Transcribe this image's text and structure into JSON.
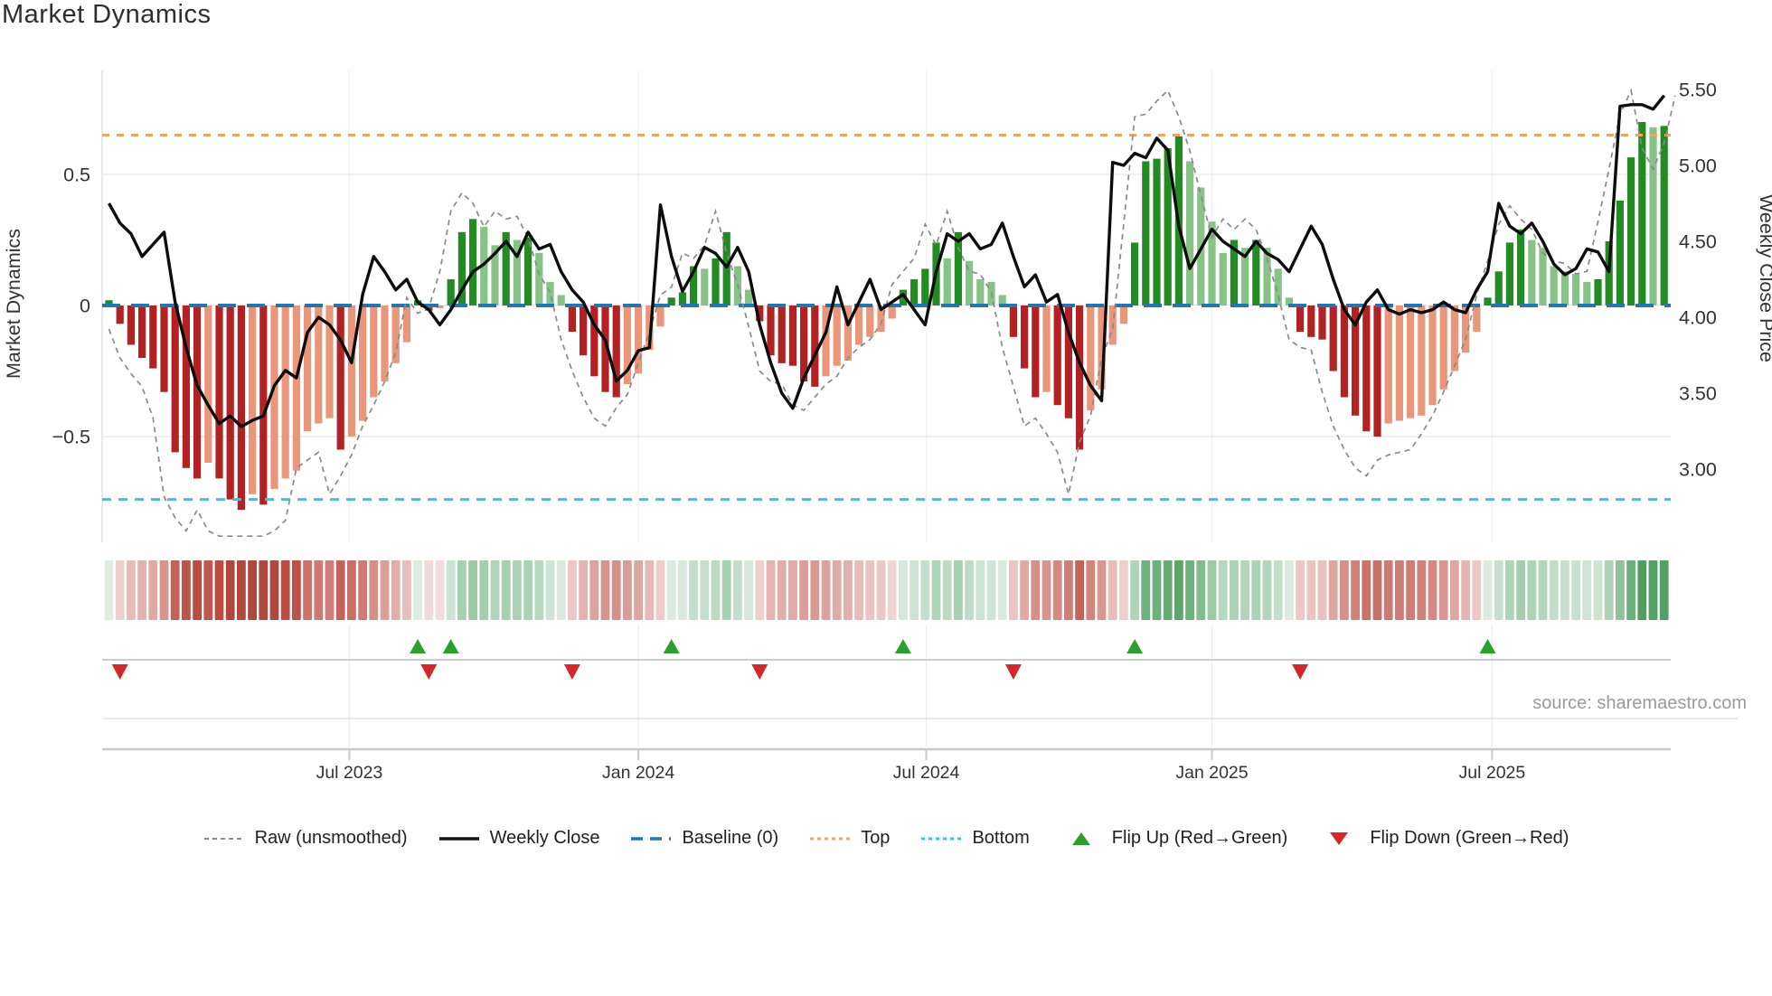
{
  "title": "Market Dynamics",
  "source_credit": "source: sharemaestro.com",
  "axes": {
    "left": {
      "label": "Market Dynamics",
      "ticks": [
        {
          "value": 0.5,
          "label": "0.5"
        },
        {
          "value": 0.0,
          "label": "0"
        },
        {
          "value": -0.5,
          "label": "−0.5"
        }
      ]
    },
    "right": {
      "label": "Weekly Close Price",
      "ticks": [
        {
          "price": 5.5,
          "label": "5.50"
        },
        {
          "price": 5.0,
          "label": "5.00"
        },
        {
          "price": 4.5,
          "label": "4.50"
        },
        {
          "price": 4.0,
          "label": "4.00"
        },
        {
          "price": 3.5,
          "label": "3.50"
        },
        {
          "price": 3.0,
          "label": "3.00"
        }
      ]
    },
    "x": {
      "ticks": [
        {
          "label": "Jul 2023",
          "week": 21.8
        },
        {
          "label": "Jan 2024",
          "week": 48.0
        },
        {
          "label": "Jul 2024",
          "week": 74.1
        },
        {
          "label": "Jan 2025",
          "week": 100.0
        },
        {
          "label": "Jul 2025",
          "week": 125.4
        }
      ]
    }
  },
  "legend": [
    {
      "label": "Raw (unsmoothed)",
      "swatch": "dashed-line",
      "color": "#8A8A8A"
    },
    {
      "label": "Weekly Close",
      "swatch": "solid-line",
      "color": "#111111"
    },
    {
      "label": "Baseline (0)",
      "swatch": "dashed-long",
      "color": "#1F77B4"
    },
    {
      "label": "Top",
      "swatch": "dotted-line",
      "color": "#F4A460"
    },
    {
      "label": "Bottom",
      "swatch": "dotted-line",
      "color": "#2EC7EE"
    },
    {
      "label": "Flip Up (Red→Green)",
      "swatch": "triangle-up",
      "color": "#2CA02C"
    },
    {
      "label": "Flip Down (Green→Red)",
      "swatch": "triangle-down",
      "color": "#D62728"
    }
  ],
  "colors": {
    "bar_neg_strong": "#B22222",
    "bar_neg_weak": "#E9967A",
    "bar_pos_strong": "#228B22",
    "bar_pos_weak": "#87C287",
    "baseline": "#1F77B4",
    "top_line": "#F4A460",
    "bottom_line": "#2EC7EE",
    "raw_line": "#8A8A8A",
    "close_line": "#0d0d0d",
    "flip_up": "#2CA02C",
    "flip_down": "#D62728",
    "grid": "#ebebf0",
    "axis_line": "#c9c9c9"
  },
  "chart_data": {
    "type": "bar+line combo with heatmap strip and flip markers",
    "x_unit": "weeks (weekly data, ~Feb 2023 to ~Nov 2025)",
    "n_weeks": 142,
    "ylim_left": [
      -0.9,
      0.9
    ],
    "ylim_right": [
      2.52,
      5.63
    ],
    "top_threshold": 0.65,
    "bottom_threshold": -0.74,
    "baseline": 0,
    "grid": "horizontal at 0.5/0/-0.5, faint vertical at month ticks",
    "legend_position": "bottom center",
    "series": [
      {
        "name": "Market Dynamics oscillator (bars, left axis)",
        "key": "osc"
      },
      {
        "name": "Weekly Close (black line, right axis)",
        "key": "close"
      },
      {
        "name": "Raw unsmoothed (gray dashed line, left axis)",
        "key": "raw"
      }
    ],
    "osc": [
      0.02,
      -0.07,
      -0.15,
      -0.2,
      -0.24,
      -0.33,
      -0.56,
      -0.62,
      -0.66,
      -0.6,
      -0.66,
      -0.74,
      -0.78,
      -0.72,
      -0.76,
      -0.7,
      -0.66,
      -0.63,
      -0.48,
      -0.45,
      -0.43,
      -0.55,
      -0.5,
      -0.44,
      -0.35,
      -0.29,
      -0.22,
      -0.14,
      0.02,
      -0.02,
      -0.01,
      0.1,
      0.28,
      0.33,
      0.3,
      0.23,
      0.28,
      0.25,
      0.26,
      0.2,
      0.09,
      0.04,
      -0.1,
      -0.19,
      -0.27,
      -0.33,
      -0.35,
      -0.3,
      -0.26,
      -0.17,
      -0.08,
      0.03,
      0.05,
      0.15,
      0.14,
      0.18,
      0.28,
      0.15,
      0.06,
      -0.06,
      -0.19,
      -0.22,
      -0.23,
      -0.29,
      -0.31,
      -0.27,
      -0.23,
      -0.21,
      -0.15,
      -0.12,
      -0.1,
      -0.05,
      0.06,
      0.1,
      0.14,
      0.24,
      0.18,
      0.28,
      0.17,
      0.1,
      0.09,
      0.04,
      -0.12,
      -0.24,
      -0.35,
      -0.33,
      -0.38,
      -0.43,
      -0.55,
      -0.4,
      -0.32,
      -0.15,
      -0.07,
      0.24,
      0.55,
      0.56,
      0.6,
      0.645,
      0.55,
      0.45,
      0.32,
      0.2,
      0.25,
      0.22,
      0.25,
      0.22,
      0.14,
      0.03,
      -0.1,
      -0.12,
      -0.13,
      -0.25,
      -0.35,
      -0.42,
      -0.48,
      -0.5,
      -0.45,
      -0.44,
      -0.43,
      -0.42,
      -0.38,
      -0.32,
      -0.25,
      -0.18,
      -0.1,
      0.03,
      0.13,
      0.24,
      0.29,
      0.25,
      0.22,
      0.15,
      0.13,
      0.12,
      0.09,
      0.1,
      0.245,
      0.4,
      0.565,
      0.7,
      0.68,
      0.685
    ],
    "close": [
      4.75,
      4.62,
      4.55,
      4.4,
      4.48,
      4.56,
      4.1,
      3.8,
      3.55,
      3.42,
      3.3,
      3.35,
      3.28,
      3.32,
      3.35,
      3.55,
      3.65,
      3.6,
      3.9,
      4.0,
      3.95,
      3.85,
      3.7,
      4.15,
      4.4,
      4.3,
      4.18,
      4.25,
      4.1,
      4.05,
      3.95,
      4.05,
      4.18,
      4.3,
      4.35,
      4.42,
      4.5,
      4.4,
      4.56,
      4.45,
      4.48,
      4.3,
      4.18,
      4.1,
      3.95,
      3.85,
      3.58,
      3.65,
      3.78,
      3.8,
      4.74,
      4.4,
      4.17,
      4.3,
      4.46,
      4.42,
      4.33,
      4.46,
      4.3,
      3.95,
      3.7,
      3.5,
      3.4,
      3.6,
      3.75,
      3.9,
      4.2,
      3.95,
      4.1,
      4.25,
      4.05,
      4.1,
      4.15,
      4.05,
      3.95,
      4.3,
      4.55,
      4.5,
      4.55,
      4.45,
      4.48,
      4.62,
      4.4,
      4.2,
      4.28,
      4.1,
      4.15,
      3.9,
      3.7,
      3.55,
      3.45,
      5.02,
      5.0,
      5.08,
      5.05,
      5.18,
      5.1,
      4.6,
      4.32,
      4.45,
      4.58,
      4.5,
      4.45,
      4.4,
      4.5,
      4.42,
      4.38,
      4.3,
      4.45,
      4.6,
      4.48,
      4.25,
      4.05,
      3.95,
      4.1,
      4.18,
      4.05,
      4.02,
      4.05,
      4.03,
      4.05,
      4.1,
      4.05,
      4.03,
      4.18,
      4.3,
      4.75,
      4.6,
      4.55,
      4.62,
      4.5,
      4.35,
      4.28,
      4.32,
      4.45,
      4.43,
      4.3,
      5.39,
      5.4,
      5.4,
      5.37,
      5.46
    ],
    "raw": [
      -0.09,
      -0.2,
      -0.26,
      -0.31,
      -0.43,
      -0.73,
      -0.81,
      -0.86,
      -0.78,
      -0.86,
      -0.88,
      -0.88,
      -0.88,
      -0.88,
      -0.88,
      -0.86,
      -0.82,
      -0.62,
      -0.59,
      -0.56,
      -0.72,
      -0.65,
      -0.57,
      -0.46,
      -0.38,
      -0.29,
      -0.18,
      0.03,
      -0.03,
      -0.01,
      0.13,
      0.36,
      0.43,
      0.39,
      0.3,
      0.36,
      0.33,
      0.34,
      0.26,
      0.12,
      0.05,
      -0.13,
      -0.25,
      -0.35,
      -0.43,
      -0.46,
      -0.39,
      -0.34,
      -0.22,
      -0.1,
      0.04,
      0.07,
      0.2,
      0.18,
      0.23,
      0.36,
      0.2,
      0.08,
      -0.08,
      -0.25,
      -0.29,
      -0.3,
      -0.38,
      -0.4,
      -0.35,
      -0.3,
      -0.27,
      -0.2,
      -0.16,
      -0.13,
      -0.07,
      0.08,
      0.13,
      0.18,
      0.31,
      0.23,
      0.36,
      0.22,
      0.13,
      0.12,
      0.05,
      -0.16,
      -0.31,
      -0.46,
      -0.43,
      -0.49,
      -0.56,
      -0.72,
      -0.52,
      -0.42,
      -0.2,
      -0.09,
      0.31,
      0.72,
      0.73,
      0.78,
      0.82,
      0.72,
      0.59,
      0.42,
      0.26,
      0.33,
      0.29,
      0.33,
      0.29,
      0.18,
      0.04,
      -0.13,
      -0.16,
      -0.17,
      -0.33,
      -0.46,
      -0.55,
      -0.62,
      -0.65,
      -0.59,
      -0.57,
      -0.56,
      -0.55,
      -0.49,
      -0.42,
      -0.33,
      -0.23,
      -0.13,
      0.04,
      0.17,
      0.31,
      0.38,
      0.33,
      0.29,
      0.2,
      0.17,
      0.16,
      0.12,
      0.13,
      0.32,
      0.52,
      0.73,
      0.82,
      0.6,
      0.52,
      0.62,
      0.8
    ],
    "flip_up_weeks": [
      28,
      31,
      51,
      72,
      93,
      125
    ],
    "flip_down_weeks": [
      1,
      29,
      42,
      59,
      82,
      108
    ],
    "heatmap": "one cell per week; hue = sign of osc, intensity proportional to |osc|"
  }
}
